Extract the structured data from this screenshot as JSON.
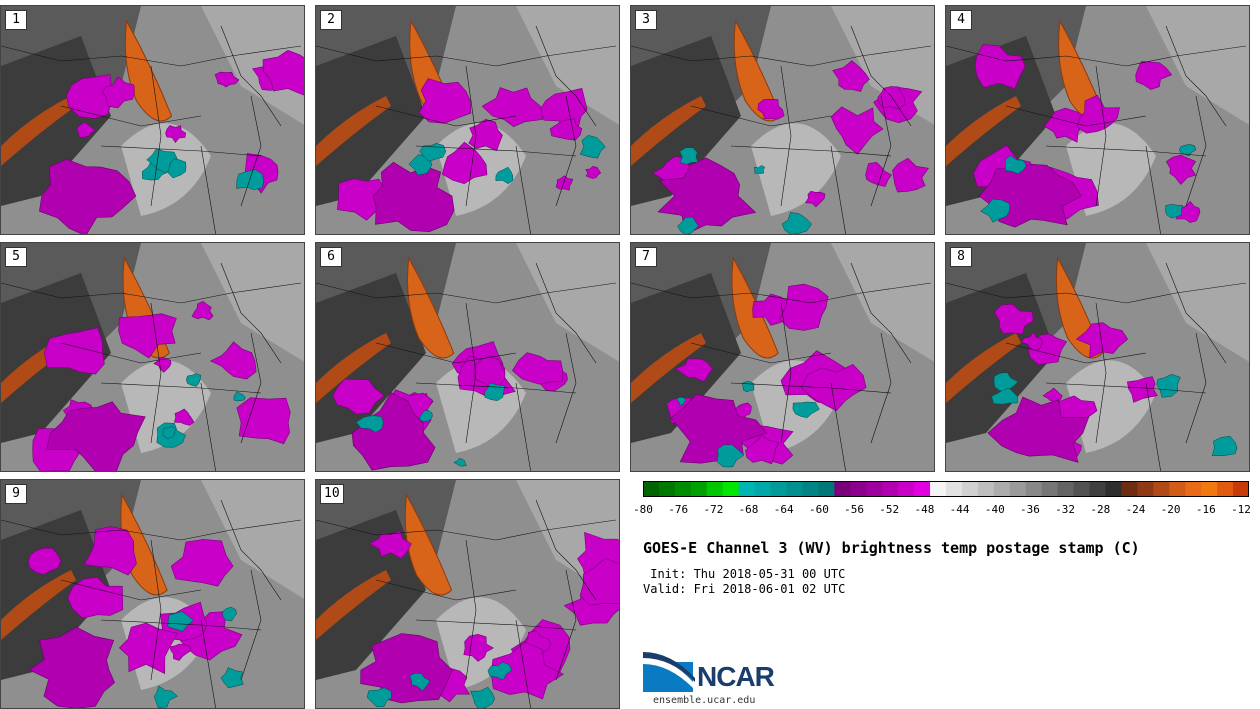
{
  "panels": [
    {
      "label": "1"
    },
    {
      "label": "2"
    },
    {
      "label": "3"
    },
    {
      "label": "4"
    },
    {
      "label": "5"
    },
    {
      "label": "6"
    },
    {
      "label": "7"
    },
    {
      "label": "8"
    },
    {
      "label": "9"
    },
    {
      "label": "10"
    }
  ],
  "colorbar": {
    "unit": "C",
    "tick_labels": [
      "-80",
      "-76",
      "-72",
      "-68",
      "-64",
      "-60",
      "-56",
      "-52",
      "-48",
      "-44",
      "-40",
      "-36",
      "-32",
      "-28",
      "-24",
      "-20",
      "-16",
      "-12"
    ],
    "colors": [
      "#006400",
      "#007800",
      "#008c00",
      "#00a000",
      "#00c800",
      "#00e600",
      "#00b4b4",
      "#00a8a8",
      "#009c9c",
      "#009090",
      "#008484",
      "#007878",
      "#7a007a",
      "#8c008c",
      "#9e009e",
      "#b000b0",
      "#c800c8",
      "#e000e0",
      "#f4f4f4",
      "#e2e2e2",
      "#d0d0d0",
      "#bebebe",
      "#acacac",
      "#9a9a9a",
      "#888888",
      "#767676",
      "#646464",
      "#525252",
      "#404040",
      "#2e2e2e",
      "#6e2c10",
      "#8e3a14",
      "#b04a16",
      "#d05c18",
      "#e86a18",
      "#f07810",
      "#e05a10",
      "#c83a0a"
    ]
  },
  "title": "GOES-E Channel 3 (WV) brightness temp postage stamp (C)",
  "init": " Init: Thu 2018-05-31 00 UTC",
  "valid": "Valid: Fri 2018-06-01 02 UTC",
  "logo": {
    "name": "NCAR",
    "url": "ensemble.ucar.edu"
  }
}
